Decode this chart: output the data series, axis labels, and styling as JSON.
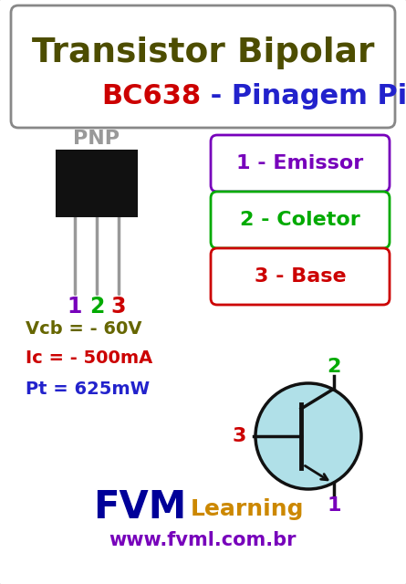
{
  "title_line1": "Transistor Bipolar",
  "title_line2_part1": "BC638",
  "title_line2_part2": " - Pinagem Pinout",
  "title_color": "#4d4d00",
  "bc638_color": "#cc0000",
  "pinagem_color": "#2222cc",
  "bg_color": "#e8e8e8",
  "card_bg": "#ffffff",
  "pnp_label": "PNP",
  "pnp_color": "#999999",
  "pin_labels": [
    "1",
    "2",
    "3"
  ],
  "pin_colors": [
    "#7700bb",
    "#00aa00",
    "#cc0000"
  ],
  "pin_box_labels": [
    "1 - Emissor",
    "2 - Coletor",
    "3 - Base"
  ],
  "pin_box_colors": [
    "#7700bb",
    "#00aa00",
    "#cc0000"
  ],
  "specs": [
    "Vcb = - 60V",
    "Ic = - 500mA",
    "Pt = 625mW"
  ],
  "spec_colors": [
    "#666600",
    "#cc0000",
    "#2222cc"
  ],
  "fvm_color": "#000099",
  "learning_color": "#cc8800",
  "website": "www.fvml.com.br",
  "website_color": "#7700bb",
  "circle_fill": "#b0e0e8",
  "circle_edge": "#111111",
  "symbol_label2_color": "#00aa00",
  "symbol_label3_color": "#cc0000",
  "symbol_label1_color": "#7700bb"
}
